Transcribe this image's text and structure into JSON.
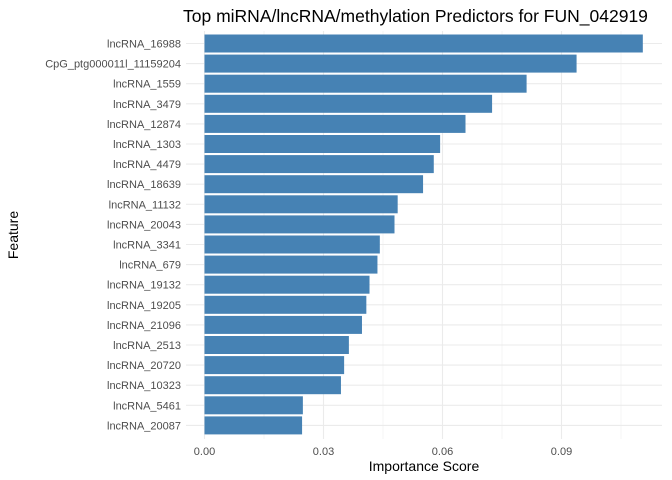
{
  "chart_data": {
    "type": "bar",
    "orientation": "horizontal",
    "title": "Top miRNA/lncRNA/methylation Predictors for FUN_042919",
    "xlabel": "Importance Score",
    "ylabel": "Feature",
    "categories": [
      "lncRNA_16988",
      "CpG_ptg000011l_11159204",
      "lncRNA_1559",
      "lncRNA_3479",
      "lncRNA_12874",
      "lncRNA_1303",
      "lncRNA_4479",
      "lncRNA_18639",
      "lncRNA_11132",
      "lncRNA_20043",
      "lncRNA_3341",
      "lncRNA_679",
      "lncRNA_19132",
      "lncRNA_19205",
      "lncRNA_21096",
      "lncRNA_2513",
      "lncRNA_20720",
      "lncRNA_10323",
      "lncRNA_5461",
      "lncRNA_20087"
    ],
    "values": [
      0.1105,
      0.0938,
      0.0812,
      0.0725,
      0.0658,
      0.0594,
      0.0578,
      0.0551,
      0.0487,
      0.0479,
      0.0442,
      0.0436,
      0.0416,
      0.0408,
      0.0397,
      0.0364,
      0.0352,
      0.0344,
      0.0248,
      0.0246
    ],
    "xlim": [
      0,
      0.111
    ],
    "xticks": [
      0,
      0.03,
      0.06,
      0.09
    ],
    "xtick_labels": [
      "0.00",
      "0.03",
      "0.06",
      "0.09"
    ],
    "bar_color": "#4682b4",
    "grid": true,
    "legend": "none"
  }
}
